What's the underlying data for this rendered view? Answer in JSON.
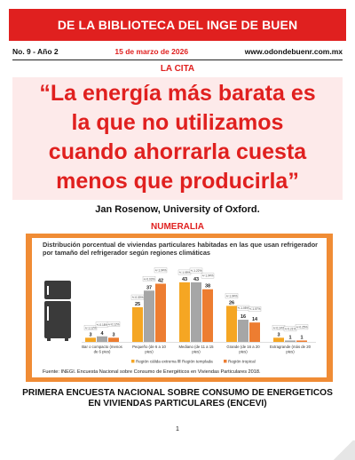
{
  "header": {
    "title": "DE LA BIBLIOTECA DEL INGE DE BUEN",
    "issue": "No. 9 - Año 2",
    "date": "15 de marzo de 2026",
    "website": "www.odondebuenr.com.mx"
  },
  "quote_section": {
    "label": "LA CITA",
    "lines": [
      "“La energía más barata es",
      "la que no utilizamos",
      "cuando ahorrarla cuesta",
      "menos que producirla”"
    ],
    "author": "Jan Rosenow, University of Oxford."
  },
  "numeralia": {
    "label": "NUMERALIA",
    "chart_title": "Distribución porcentual de viviendas particulares habitadas en las que usan refrigerador por tamaño del refrigerador según regiones climáticas",
    "source": "Fuente: INEGI. Encuesta Nacional sobre Consumo de Energéticos en Viviendas Particulares 2018.",
    "survey_title_line1": "PRIMERA ENCUESTA NACIONAL SOBRE CONSUMO DE ENERGETICOS",
    "survey_title_line2": "EN VIVIENDAS PARTICULARES (ENCEVI)"
  },
  "page_number": "1",
  "colors": {
    "accent_red": "#e0201f",
    "frame_orange": "#f08c35",
    "series_extreme": "#f5a623",
    "series_temperate": "#a6a6a6",
    "series_tropical": "#ed7d31",
    "fridge_icon": "#3a3a3a"
  },
  "icons": [
    "refrigerator-icon"
  ],
  "chart_data": {
    "type": "bar",
    "categories": [
      [
        "Bar o compacto (menos",
        "de 6 pies)"
      ],
      [
        "Pequeño (de 6 a 10",
        "pies)"
      ],
      [
        "Mediano (de 11 a 15",
        "pies)"
      ],
      [
        "Grande (de 16 a 20",
        "pies)"
      ],
      [
        "Extragrande (más de 20",
        "pies)"
      ]
    ],
    "series": [
      {
        "name": "Región cálida extrema",
        "values": [
          3,
          25,
          43,
          26,
          3
        ],
        "moe": [
          "+/-1.12%",
          "+/-0.33%",
          "+/-1.05%",
          "+/-1.04%",
          "+/-0.14%"
        ]
      },
      {
        "name": "Región templada",
        "values": [
          4,
          37,
          43,
          16,
          1
        ],
        "moe": [
          "+/-0.18%",
          "+/-0.03%",
          "+/-1.22%",
          "+/-1.05%",
          "+/-0.21%"
        ]
      },
      {
        "name": "Región tropical",
        "values": [
          3,
          42,
          38,
          14,
          1
        ],
        "moe": [
          "+/-0.12%",
          "+/-1.04%",
          "+/-1.04%",
          "+/-1.07%",
          "+/-0.25%"
        ]
      }
    ],
    "ylim": [
      0,
      50
    ],
    "legend_position": "bottom",
    "grid": false
  }
}
